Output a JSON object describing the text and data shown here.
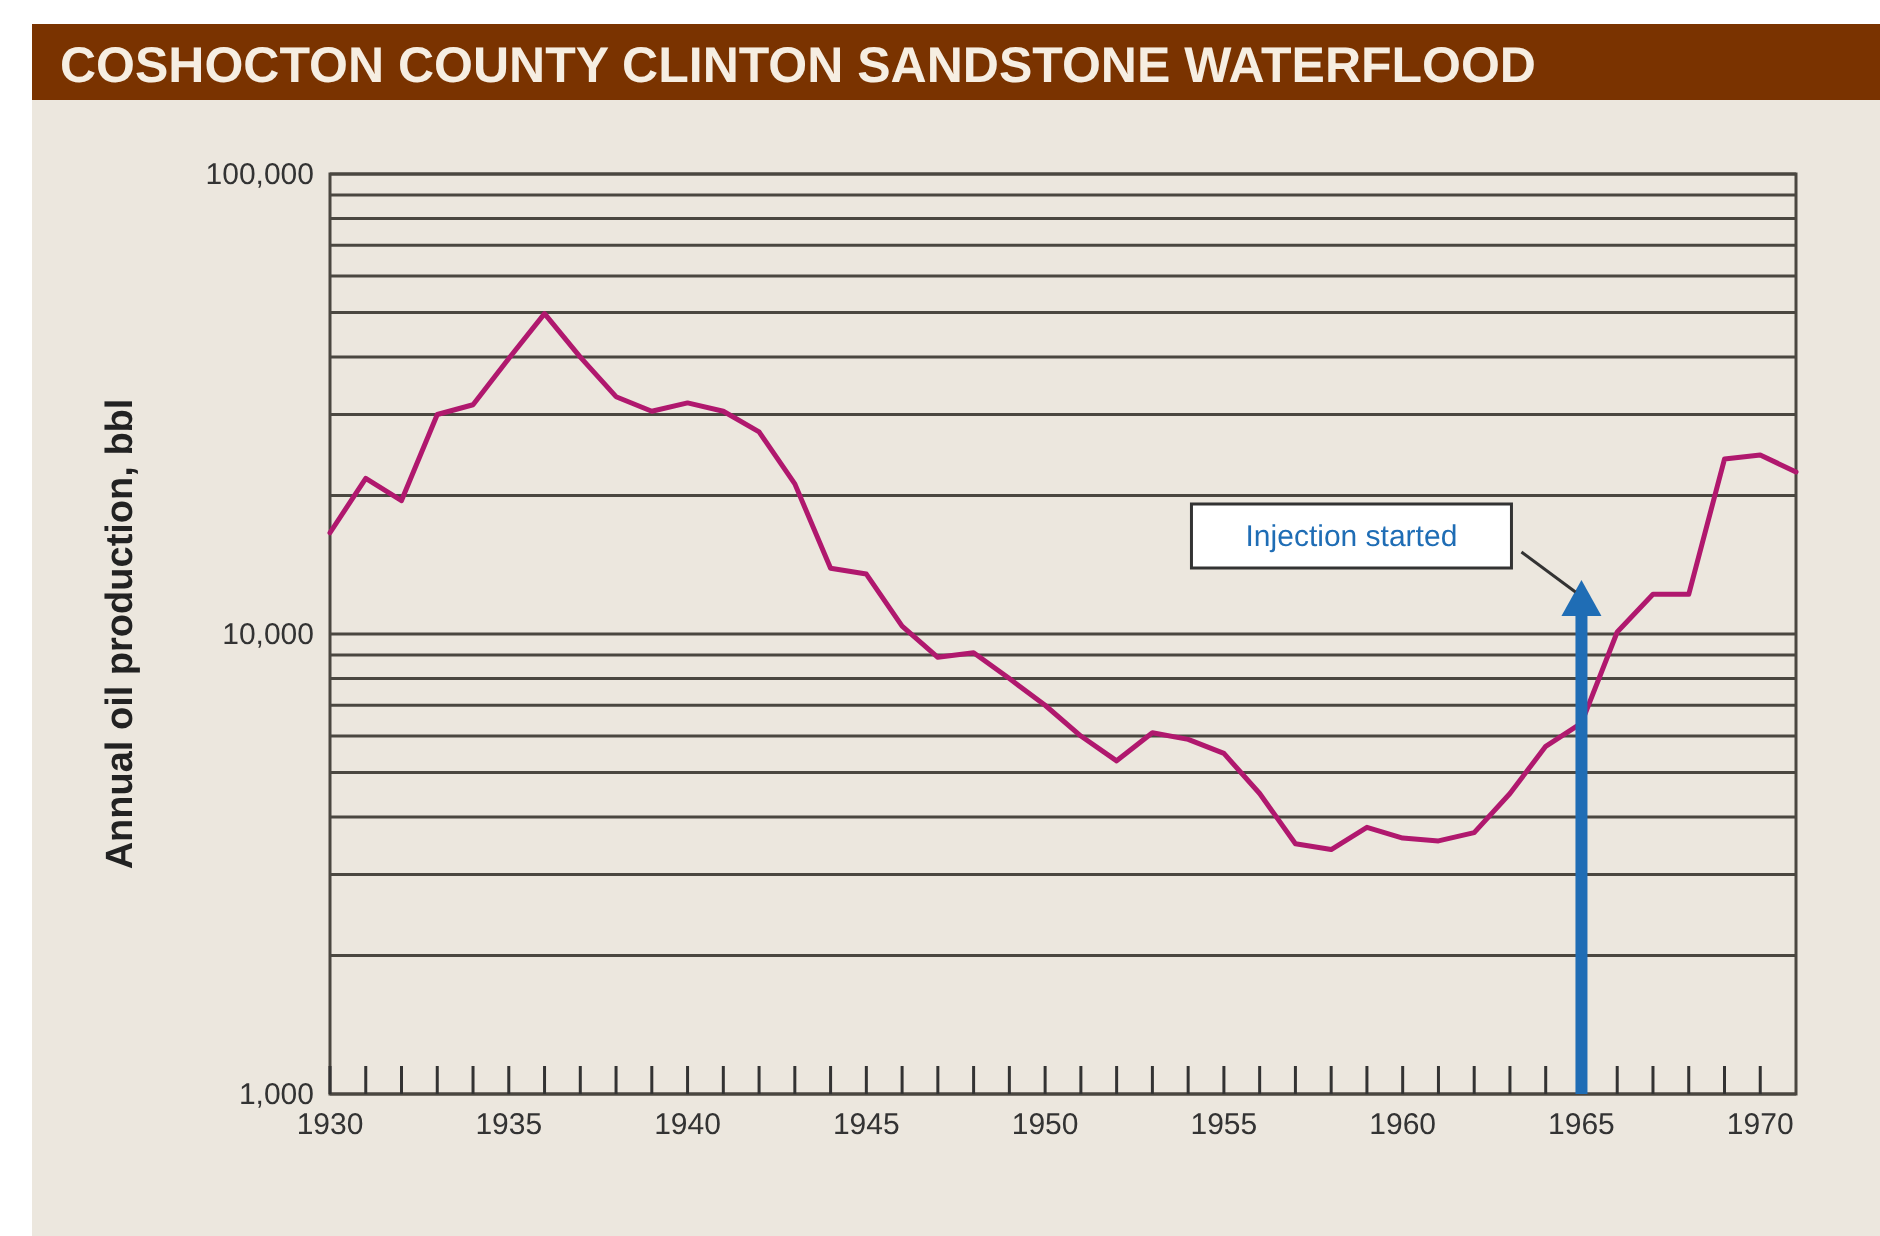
{
  "chart_data": {
    "type": "line",
    "title": "COSHOCTON COUNTY CLINTON SANDSTONE WATERFLOOD",
    "ylabel": "Annual oil production, bbl",
    "x": [
      1930,
      1931,
      1932,
      1933,
      1934,
      1935,
      1936,
      1937,
      1938,
      1939,
      1940,
      1941,
      1942,
      1943,
      1944,
      1945,
      1946,
      1947,
      1948,
      1949,
      1950,
      1951,
      1952,
      1953,
      1954,
      1955,
      1956,
      1957,
      1958,
      1959,
      1960,
      1961,
      1962,
      1963,
      1964,
      1965,
      1966,
      1967,
      1968,
      1969,
      1970,
      1971
    ],
    "series": [
      {
        "color": "#b0186e",
        "values": [
          16600,
          21800,
          19500,
          30000,
          31500,
          39700,
          49700,
          40000,
          32800,
          30500,
          31800,
          30500,
          27500,
          21200,
          13900,
          13500,
          10400,
          8900,
          9100,
          8000,
          7000,
          6000,
          5300,
          6100,
          5900,
          5500,
          4500,
          3500,
          3400,
          3800,
          3600,
          3550,
          3700,
          4500,
          5700,
          6400,
          10100,
          12200,
          12200,
          24000,
          24500,
          22500
        ]
      }
    ],
    "log": "y",
    "grid": "y",
    "marker": "none",
    "line_style": "solid",
    "xlim": [
      1930,
      1971
    ],
    "xticks": [
      1930,
      {
        "value": 1931,
        "label": null
      },
      {
        "value": 1932,
        "label": null
      },
      {
        "value": 1933,
        "label": null
      },
      {
        "value": 1934,
        "label": null
      },
      1935,
      {
        "value": 1936,
        "label": null
      },
      {
        "value": 1937,
        "label": null
      },
      {
        "value": 1938,
        "label": null
      },
      {
        "value": 1939,
        "label": null
      },
      1940,
      {
        "value": 1941,
        "label": null
      },
      {
        "value": 1942,
        "label": null
      },
      {
        "value": 1943,
        "label": null
      },
      {
        "value": 1944,
        "label": null
      },
      1945,
      {
        "value": 1946,
        "label": null
      },
      {
        "value": 1947,
        "label": null
      },
      {
        "value": 1948,
        "label": null
      },
      {
        "value": 1949,
        "label": null
      },
      1950,
      {
        "value": 1951,
        "label": null
      },
      {
        "value": 1952,
        "label": null
      },
      {
        "value": 1953,
        "label": null
      },
      {
        "value": 1954,
        "label": null
      },
      1955,
      {
        "value": 1956,
        "label": null
      },
      {
        "value": 1957,
        "label": null
      },
      {
        "value": 1958,
        "label": null
      },
      {
        "value": 1959,
        "label": null
      },
      1960,
      {
        "value": 1961,
        "label": null
      },
      {
        "value": 1962,
        "label": null
      },
      {
        "value": 1963,
        "label": null
      },
      {
        "value": 1964,
        "label": null
      },
      1965,
      {
        "value": 1966,
        "label": null
      },
      {
        "value": 1967,
        "label": null
      },
      {
        "value": 1968,
        "label": null
      },
      {
        "value": 1969,
        "label": null
      },
      1970
    ],
    "ylim": [
      1000,
      100000
    ],
    "yticks": [
      {
        "value": 1000,
        "label": "1,000"
      },
      {
        "value": 2000,
        "label": null
      },
      {
        "value": 3000,
        "label": null
      },
      {
        "value": 4000,
        "label": null
      },
      {
        "value": 5000,
        "label": null
      },
      {
        "value": 6000,
        "label": null
      },
      {
        "value": 7000,
        "label": null
      },
      {
        "value": 8000,
        "label": null
      },
      {
        "value": 9000,
        "label": null
      },
      {
        "value": 10000,
        "label": "10,000"
      },
      {
        "value": 20000,
        "label": null
      },
      {
        "value": 30000,
        "label": null
      },
      {
        "value": 40000,
        "label": null
      },
      {
        "value": 50000,
        "label": null
      },
      {
        "value": 60000,
        "label": null
      },
      {
        "value": 70000,
        "label": null
      },
      {
        "value": 80000,
        "label": null
      },
      {
        "value": 90000,
        "label": null
      },
      {
        "value": 100000,
        "label": "100,000"
      }
    ],
    "ref_lines": [
      {
        "axis": "x",
        "value": 1965,
        "label": "Injection started",
        "color": "#1f6db5"
      }
    ]
  }
}
